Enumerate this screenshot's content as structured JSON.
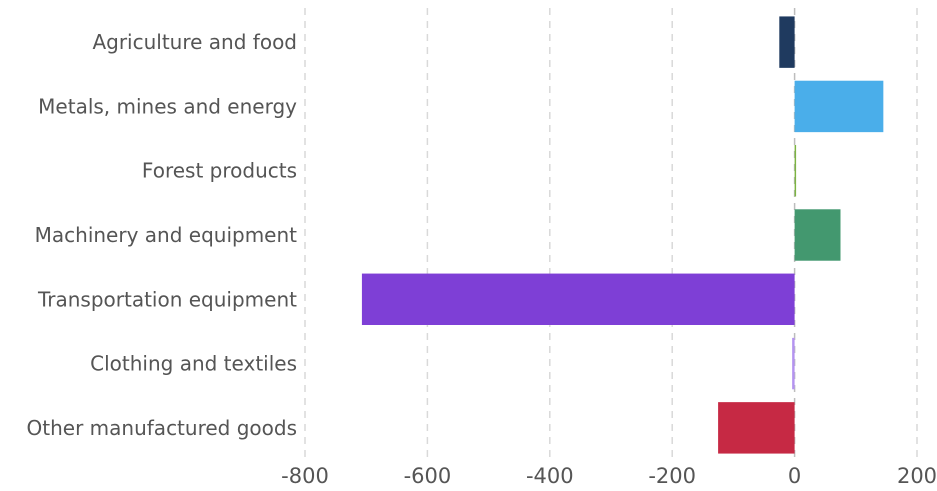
{
  "chart_data": {
    "type": "bar",
    "orientation": "horizontal",
    "title": "",
    "xlabel": "",
    "ylabel": "",
    "categories": [
      "Agriculture and food",
      "Metals, mines and energy",
      "Forest products",
      "Machinery and equipment",
      "Transportation equipment",
      "Clothing and textiles",
      "Other manufactured goods"
    ],
    "values": [
      -25,
      145,
      2,
      75,
      -707,
      -4,
      -125
    ],
    "colors": [
      "#1f3a5f",
      "#4aaeea",
      "#7cb342",
      "#43986f",
      "#7e3fd6",
      "#b493f0",
      "#c62944"
    ],
    "xlim": [
      -800,
      200
    ],
    "xticks": [
      -800,
      -600,
      -400,
      -200,
      0,
      200
    ],
    "xtick_labels": [
      "-800",
      "-600",
      "-400",
      "-200",
      "0",
      "200"
    ],
    "grid": "vertical dashed"
  }
}
